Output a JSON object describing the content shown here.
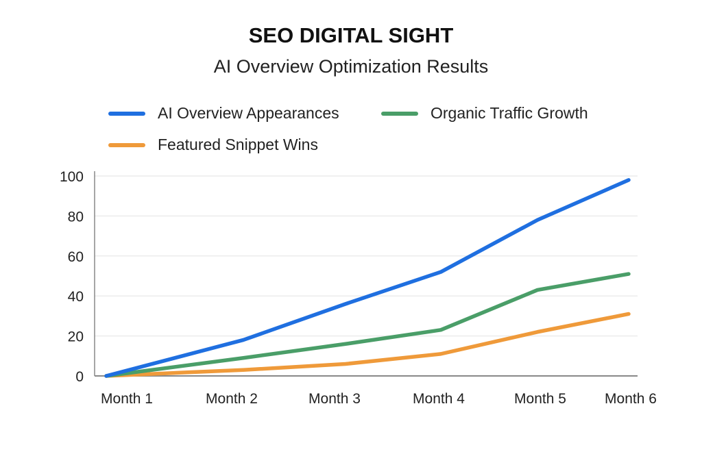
{
  "chart_data": {
    "type": "line",
    "title": "SEO DIGITAL SIGHT",
    "subtitle": "AI Overview Optimization Results",
    "categories": [
      "Month 1",
      "Month 2",
      "Month 3",
      "Month 4",
      "Month 5",
      "Month 6"
    ],
    "ylim": [
      0,
      100
    ],
    "yticks": [
      "0",
      "20",
      "40",
      "60",
      "80",
      "100"
    ],
    "grid": true,
    "legend_placement": "top",
    "series": [
      {
        "name": "AI Overview Appearances",
        "color": "#1f6fe0",
        "values": [
          0,
          18,
          36,
          52,
          78,
          98
        ]
      },
      {
        "name": "Organic Traffic Growth",
        "color": "#4a9e68",
        "values": [
          0,
          9,
          16,
          23,
          43,
          51
        ]
      },
      {
        "name": "Featured Snippet Wins",
        "color": "#ef9a3a",
        "values": [
          0,
          3,
          6,
          11,
          22,
          31
        ]
      }
    ]
  }
}
